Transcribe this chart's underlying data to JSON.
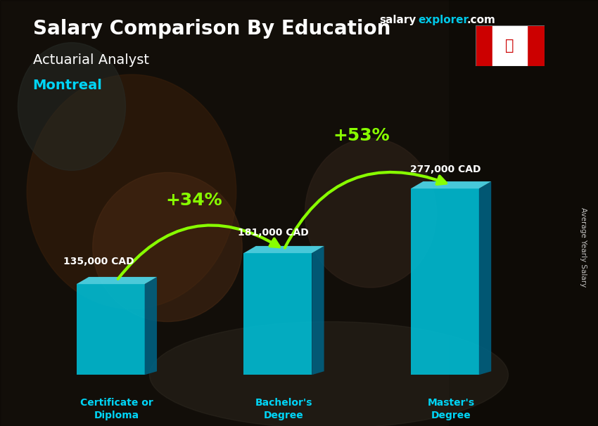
{
  "title_salary": "Salary Comparison By Education",
  "subtitle_job": "Actuarial Analyst",
  "subtitle_city": "Montreal",
  "watermark_salary": "salary",
  "watermark_explorer": "explorer",
  "watermark_com": ".com",
  "ylabel": "Average Yearly Salary",
  "categories": [
    "Certificate or\nDiploma",
    "Bachelor's\nDegree",
    "Master's\nDegree"
  ],
  "values": [
    135000,
    181000,
    277000
  ],
  "value_labels": [
    "135,000 CAD",
    "181,000 CAD",
    "277,000 CAD"
  ],
  "pct_labels": [
    "+34%",
    "+53%"
  ],
  "bar_color_front": "#00bcd4",
  "bar_color_side": "#006080",
  "bar_color_top": "#4dd9ec",
  "title_color": "#ffffff",
  "city_color": "#00d4f5",
  "value_color": "#ffffff",
  "pct_color": "#88ff00",
  "arrow_color": "#88ff00",
  "cat_color": "#00d4f5",
  "bg_color": "#2a2018",
  "ylim": [
    0,
    380000
  ],
  "bar_positions": [
    1.2,
    2.55,
    3.9
  ],
  "bar_width": 0.55
}
